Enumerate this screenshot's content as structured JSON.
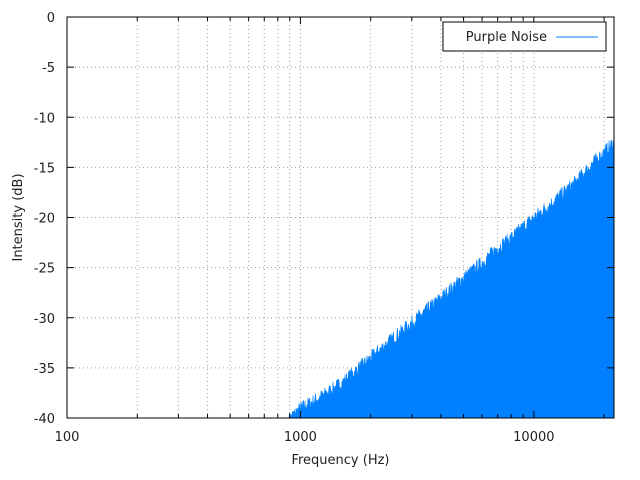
{
  "chart_data": {
    "type": "area",
    "title": "",
    "xlabel": "Frequency (Hz)",
    "ylabel": "Intensity (dB)",
    "x_scale": "log",
    "xlim": [
      100,
      22050
    ],
    "ylim": [
      -40,
      0
    ],
    "x_ticks": [
      100,
      1000,
      10000
    ],
    "x_tick_labels": [
      "100",
      "1000",
      "10000"
    ],
    "y_ticks": [
      0,
      -5,
      -10,
      -15,
      -20,
      -25,
      -30,
      -35,
      -40
    ],
    "y_tick_labels": [
      "0",
      "-5",
      "-10",
      "-15",
      "-20",
      "-25",
      "-30",
      "-35",
      "-40"
    ],
    "grid": true,
    "legend_position": "top-right",
    "series": [
      {
        "name": "Purple Noise",
        "color": "#0080ff",
        "fill_to": -40,
        "x": [
          900,
          1000,
          1200,
          1500,
          2000,
          2500,
          3000,
          4000,
          5000,
          6000,
          7000,
          8000,
          10000,
          12000,
          15000,
          18000,
          22050
        ],
        "values": [
          -40,
          -39.0,
          -38.0,
          -36.5,
          -34.0,
          -32.0,
          -30.5,
          -28.0,
          -26.0,
          -24.5,
          -23.0,
          -22.0,
          -20.0,
          -18.5,
          -16.5,
          -14.5,
          -12.5
        ]
      }
    ]
  }
}
